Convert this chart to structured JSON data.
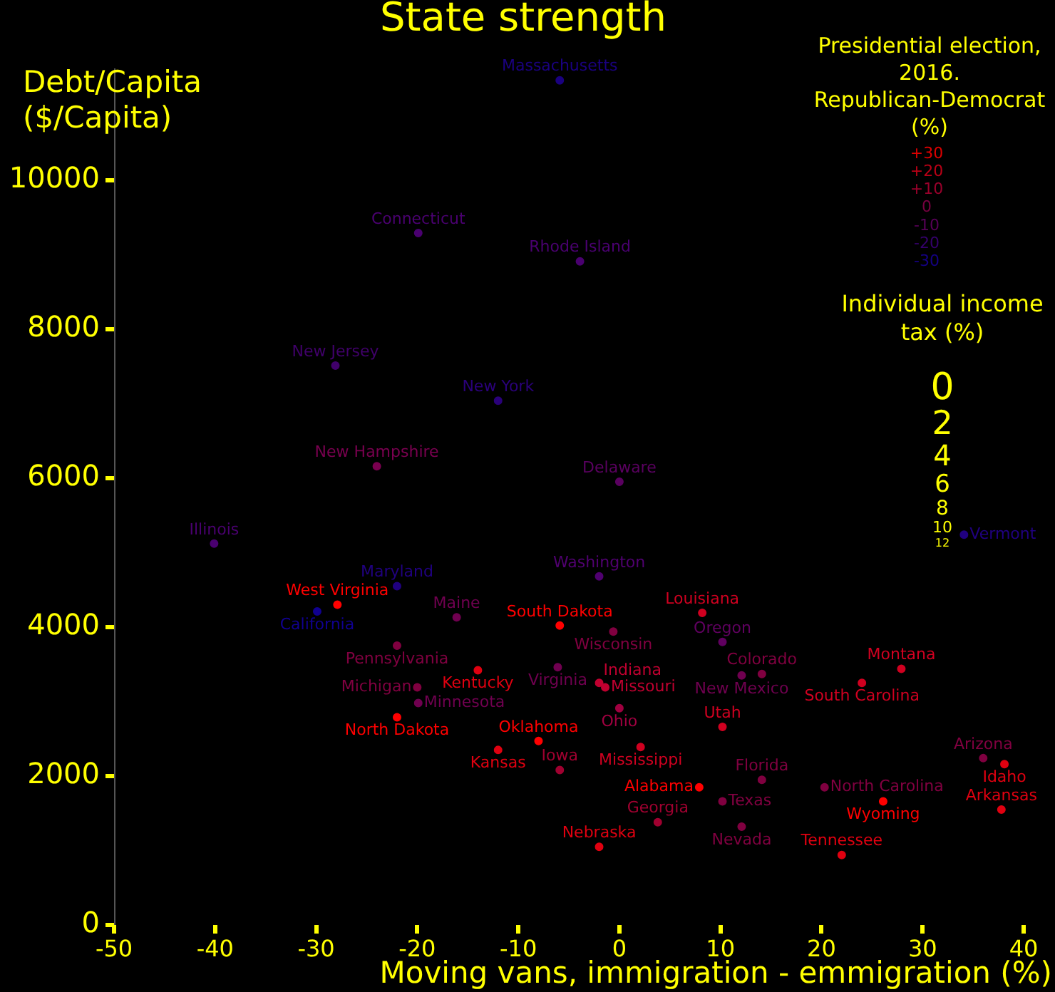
{
  "chart_data": {
    "type": "scatter",
    "title": "State strength",
    "xlabel": "Moving vans, immigration - emmigration (%)",
    "ylabel": "Debt/Capita ($/Capita)",
    "marker": "circle",
    "grid": false,
    "annotations": [
      "Presidential election, 2016. Republican-Democrat (%)",
      "+30",
      "+20",
      "+10",
      "0",
      "-10",
      "-20",
      "-30",
      "Individual income tax (%)",
      "0",
      "2",
      "4",
      "6",
      "8",
      "10",
      "12"
    ],
    "xlim": [
      -50,
      40
    ],
    "xticks": [
      -50,
      -40,
      -30,
      -20,
      -10,
      0,
      10,
      20,
      30,
      40
    ],
    "ylim": [
      0,
      11500
    ],
    "yticks": [
      0,
      2000,
      4000,
      6000,
      8000,
      10000
    ],
    "series": [
      {
        "name": "Massachusetts",
        "color": "#1a0080",
        "x": [
          -5.9
        ],
        "values": [
          11340
        ]
      },
      {
        "name": "Connecticut",
        "color": "#4a0070",
        "x": [
          -19.9
        ],
        "values": [
          9290
        ]
      },
      {
        "name": "Rhode Island",
        "color": "#4a0070",
        "x": [
          -3.9
        ],
        "values": [
          8910
        ]
      },
      {
        "name": "New Jersey",
        "color": "#40006a",
        "x": [
          -28.1
        ],
        "values": [
          7510
        ]
      },
      {
        "name": "New York",
        "color": "#2a007a",
        "x": [
          -12
        ],
        "values": [
          7040
        ]
      },
      {
        "name": "New Hampshire",
        "color": "#7a0050",
        "x": [
          -24
        ],
        "values": [
          6160
        ]
      },
      {
        "name": "Delaware",
        "color": "#5a0060",
        "x": [
          0
        ],
        "values": [
          5950
        ]
      },
      {
        "name": "Illinois",
        "color": "#4a0070",
        "x": [
          -40.1
        ],
        "values": [
          5120
        ]
      },
      {
        "name": "Vermont",
        "color": "#200080",
        "x": [
          34.1
        ],
        "values": [
          5240
        ]
      },
      {
        "name": "Maryland",
        "color": "#200080",
        "x": [
          -22
        ],
        "values": [
          4550
        ]
      },
      {
        "name": "Washington",
        "color": "#500070",
        "x": [
          -2
        ],
        "values": [
          4680
        ]
      },
      {
        "name": "West Virginia",
        "color": "#ff0000",
        "x": [
          -27.9
        ],
        "values": [
          4300
        ]
      },
      {
        "name": "California",
        "color": "#100090",
        "x": [
          -29.9
        ],
        "values": [
          4210
        ]
      },
      {
        "name": "Maine",
        "color": "#700050",
        "x": [
          -16.1
        ],
        "values": [
          4130
        ]
      },
      {
        "name": "South Dakota",
        "color": "#ff0000",
        "x": [
          -5.9
        ],
        "values": [
          4020
        ]
      },
      {
        "name": "Louisiana",
        "color": "#d00020",
        "x": [
          8.2
        ],
        "values": [
          4190
        ]
      },
      {
        "name": "Wisconsin",
        "color": "#800040",
        "x": [
          -0.6
        ],
        "values": [
          3940
        ]
      },
      {
        "name": "Oregon",
        "color": "#600060",
        "x": [
          10.2
        ],
        "values": [
          3800
        ]
      },
      {
        "name": "Pennsylvania",
        "color": "#800040",
        "x": [
          -22
        ],
        "values": [
          3750
        ]
      },
      {
        "name": "Virginia",
        "color": "#700050",
        "x": [
          -6.1
        ],
        "values": [
          3460
        ]
      },
      {
        "name": "Kentucky",
        "color": "#e00010",
        "x": [
          -14
        ],
        "values": [
          3420
        ]
      },
      {
        "name": "Indiana",
        "color": "#c00030",
        "x": [
          -2
        ],
        "values": [
          3250
        ]
      },
      {
        "name": "Missouri",
        "color": "#c00030",
        "x": [
          -1.4
        ],
        "values": [
          3190
        ]
      },
      {
        "name": "Michigan",
        "color": "#800040",
        "x": [
          -20
        ],
        "values": [
          3190
        ]
      },
      {
        "name": "Minnesota",
        "color": "#700050",
        "x": [
          -19.9
        ],
        "values": [
          2980
        ]
      },
      {
        "name": "Ohio",
        "color": "#a00040",
        "x": [
          0
        ],
        "values": [
          2910
        ]
      },
      {
        "name": "New Mexico",
        "color": "#700050",
        "x": [
          12.1
        ],
        "values": [
          3350
        ]
      },
      {
        "name": "Colorado",
        "color": "#800040",
        "x": [
          14.1
        ],
        "values": [
          3370
        ]
      },
      {
        "name": "South Carolina",
        "color": "#d00020",
        "x": [
          24
        ],
        "values": [
          3250
        ]
      },
      {
        "name": "Montana",
        "color": "#d00020",
        "x": [
          27.9
        ],
        "values": [
          3440
        ]
      },
      {
        "name": "North Dakota",
        "color": "#ff0000",
        "x": [
          -22
        ],
        "values": [
          2790
        ]
      },
      {
        "name": "Utah",
        "color": "#d00020",
        "x": [
          10.2
        ],
        "values": [
          2660
        ]
      },
      {
        "name": "Oklahoma",
        "color": "#ff0000",
        "x": [
          -8
        ],
        "values": [
          2470
        ]
      },
      {
        "name": "Kansas",
        "color": "#e00010",
        "x": [
          -12
        ],
        "values": [
          2350
        ]
      },
      {
        "name": "Mississippi",
        "color": "#d00020",
        "x": [
          2.1
        ],
        "values": [
          2390
        ]
      },
      {
        "name": "Iowa",
        "color": "#a00030",
        "x": [
          -5.9
        ],
        "values": [
          2080
        ]
      },
      {
        "name": "Florida",
        "color": "#800040",
        "x": [
          14.1
        ],
        "values": [
          1950
        ]
      },
      {
        "name": "North Carolina",
        "color": "#800040",
        "x": [
          20.3
        ],
        "values": [
          1850
        ]
      },
      {
        "name": "Alabama",
        "color": "#ff0000",
        "x": [
          7.9
        ],
        "values": [
          1850
        ]
      },
      {
        "name": "Texas",
        "color": "#800040",
        "x": [
          10.2
        ],
        "values": [
          1660
        ]
      },
      {
        "name": "Wyoming",
        "color": "#ff0000",
        "x": [
          26.1
        ],
        "values": [
          1660
        ]
      },
      {
        "name": "Arizona",
        "color": "#800040",
        "x": [
          36
        ],
        "values": [
          2240
        ]
      },
      {
        "name": "Idaho",
        "color": "#e00010",
        "x": [
          38.1
        ],
        "values": [
          2160
        ]
      },
      {
        "name": "Arkansas",
        "color": "#e00010",
        "x": [
          37.8
        ],
        "values": [
          1550
        ]
      },
      {
        "name": "Georgia",
        "color": "#a00030",
        "x": [
          3.8
        ],
        "values": [
          1380
        ]
      },
      {
        "name": "Nevada",
        "color": "#800040",
        "x": [
          12.1
        ],
        "values": [
          1320
        ]
      },
      {
        "name": "Nebraska",
        "color": "#e00010",
        "x": [
          -2
        ],
        "values": [
          1050
        ]
      },
      {
        "name": "Tennessee",
        "color": "#e00010",
        "x": [
          22
        ],
        "values": [
          940
        ]
      }
    ]
  }
}
